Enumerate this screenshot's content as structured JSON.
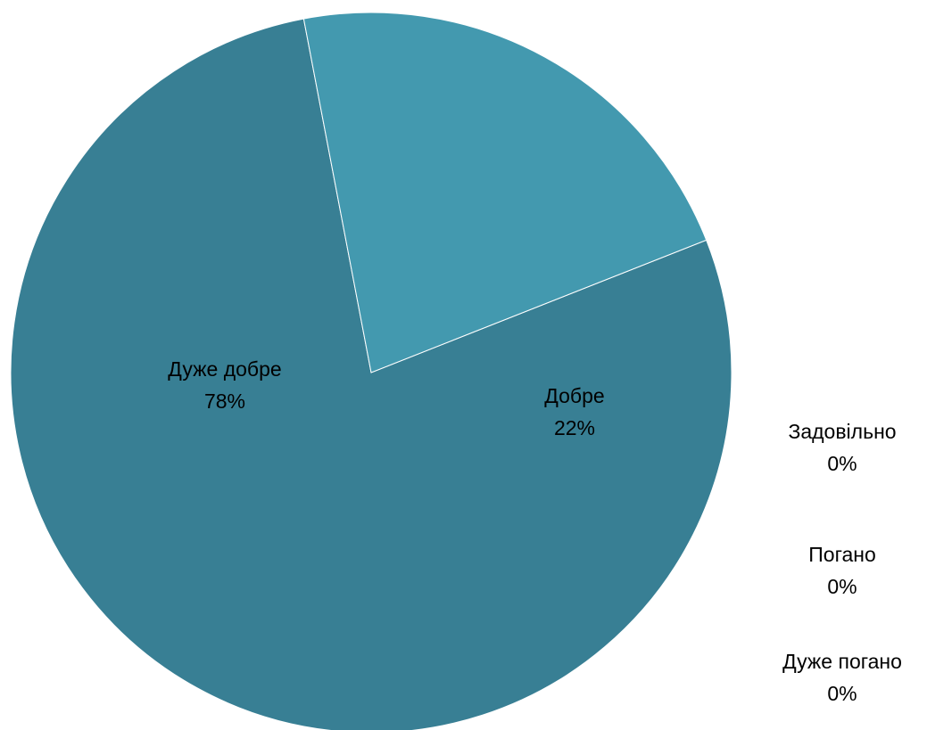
{
  "chart_data": {
    "type": "pie",
    "title": "",
    "categories": [
      "Дуже добре",
      "Добре",
      "Задовільно",
      "Погано",
      "Дуже погано"
    ],
    "values": [
      78,
      22,
      0,
      0,
      0
    ],
    "value_labels": [
      "78%",
      "22%",
      "0%",
      "0%",
      "0%"
    ],
    "colors": [
      "#387F94",
      "#4399AF",
      "#4FA9BE",
      "#5BB5C8",
      "#6CC0D0"
    ],
    "legend": "none",
    "data_labels": "inside"
  }
}
